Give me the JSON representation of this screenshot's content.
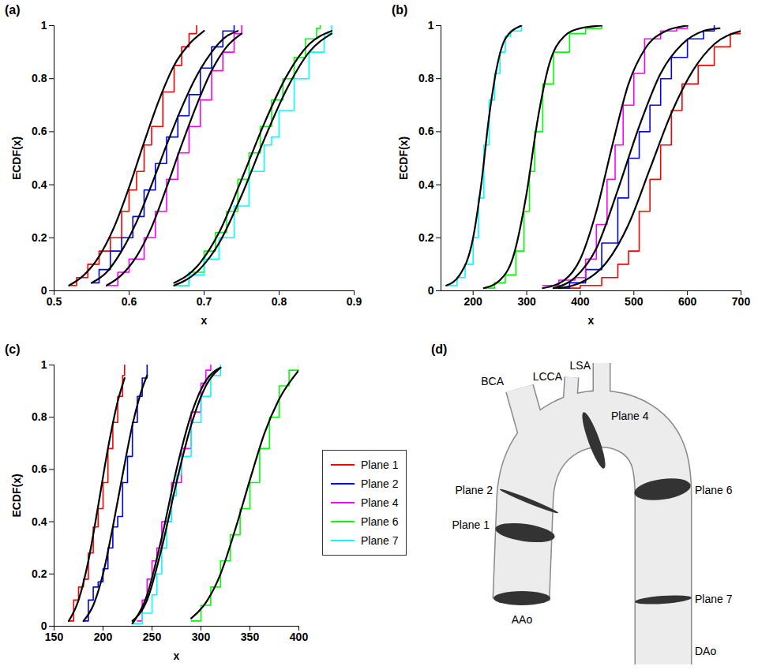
{
  "chart_data": [
    {
      "type": "line",
      "panel": "(a)",
      "xlabel": "x",
      "ylabel": "ECDF(x)",
      "xlim": [
        0.5,
        0.9
      ],
      "xticks": [
        0.5,
        0.6,
        0.7,
        0.8,
        0.9
      ],
      "ylim": [
        0,
        1
      ],
      "yticks": [
        0,
        0.2,
        0.4,
        0.6,
        0.8,
        1
      ],
      "series": [
        {
          "name": "Plane 1",
          "color": "#ff0000",
          "line_style": "step",
          "x": [
            0.52,
            0.53,
            0.545,
            0.56,
            0.575,
            0.59,
            0.6,
            0.61,
            0.62,
            0.63,
            0.645,
            0.66,
            0.67,
            0.68,
            0.69
          ],
          "values": [
            0.02,
            0.05,
            0.1,
            0.15,
            0.2,
            0.3,
            0.38,
            0.45,
            0.55,
            0.62,
            0.75,
            0.85,
            0.92,
            0.97,
            1
          ]
        },
        {
          "name": "Plane 2",
          "color": "#0000ff",
          "line_style": "step",
          "x": [
            0.55,
            0.56,
            0.575,
            0.59,
            0.605,
            0.62,
            0.635,
            0.65,
            0.665,
            0.68,
            0.695,
            0.71,
            0.725,
            0.74
          ],
          "values": [
            0.03,
            0.08,
            0.15,
            0.2,
            0.28,
            0.38,
            0.48,
            0.58,
            0.66,
            0.74,
            0.84,
            0.92,
            0.98,
            1
          ]
        },
        {
          "name": "Plane 4",
          "color": "#ff00ff",
          "line_style": "step",
          "x": [
            0.57,
            0.585,
            0.6,
            0.62,
            0.635,
            0.65,
            0.665,
            0.68,
            0.695,
            0.71,
            0.725,
            0.74,
            0.75
          ],
          "values": [
            0.02,
            0.07,
            0.12,
            0.2,
            0.3,
            0.42,
            0.52,
            0.62,
            0.72,
            0.83,
            0.9,
            0.97,
            1
          ]
        },
        {
          "name": "Plane 6",
          "color": "#00ff00",
          "line_style": "step",
          "x": [
            0.66,
            0.68,
            0.7,
            0.715,
            0.73,
            0.745,
            0.76,
            0.775,
            0.79,
            0.805,
            0.82,
            0.835,
            0.85,
            0.855
          ],
          "values": [
            0.02,
            0.07,
            0.15,
            0.22,
            0.3,
            0.42,
            0.52,
            0.62,
            0.72,
            0.8,
            0.88,
            0.95,
            0.99,
            1
          ]
        },
        {
          "name": "Plane 7",
          "color": "#00ffff",
          "line_style": "step",
          "x": [
            0.66,
            0.68,
            0.7,
            0.72,
            0.74,
            0.76,
            0.78,
            0.79,
            0.8,
            0.82,
            0.84,
            0.86,
            0.87
          ],
          "values": [
            0.02,
            0.06,
            0.12,
            0.2,
            0.32,
            0.45,
            0.55,
            0.58,
            0.68,
            0.8,
            0.9,
            0.97,
            1
          ]
        }
      ],
      "fits": [
        {
          "color": "#000000",
          "line_style": "solid",
          "x": [
            0.52,
            0.54,
            0.56,
            0.58,
            0.6,
            0.62,
            0.64,
            0.66,
            0.68,
            0.7
          ],
          "values": [
            0.02,
            0.06,
            0.13,
            0.24,
            0.39,
            0.56,
            0.72,
            0.85,
            0.93,
            0.98
          ]
        },
        {
          "color": "#000000",
          "line_style": "solid",
          "x": [
            0.55,
            0.57,
            0.59,
            0.61,
            0.63,
            0.65,
            0.67,
            0.69,
            0.71,
            0.73,
            0.745
          ],
          "values": [
            0.03,
            0.07,
            0.15,
            0.26,
            0.4,
            0.55,
            0.69,
            0.81,
            0.9,
            0.96,
            0.98
          ]
        },
        {
          "color": "#000000",
          "line_style": "solid",
          "x": [
            0.57,
            0.59,
            0.61,
            0.63,
            0.65,
            0.67,
            0.69,
            0.71,
            0.73,
            0.75
          ],
          "values": [
            0.02,
            0.06,
            0.13,
            0.24,
            0.39,
            0.55,
            0.7,
            0.83,
            0.92,
            0.97
          ]
        },
        {
          "color": "#000000",
          "line_style": "solid",
          "x": [
            0.66,
            0.69,
            0.72,
            0.75,
            0.78,
            0.81,
            0.84,
            0.87
          ],
          "values": [
            0.03,
            0.09,
            0.22,
            0.42,
            0.63,
            0.81,
            0.93,
            0.98
          ]
        },
        {
          "color": "#000000",
          "line_style": "solid",
          "x": [
            0.66,
            0.69,
            0.72,
            0.75,
            0.78,
            0.81,
            0.84,
            0.87
          ],
          "values": [
            0.02,
            0.07,
            0.18,
            0.36,
            0.57,
            0.76,
            0.9,
            0.97
          ]
        }
      ]
    },
    {
      "type": "line",
      "panel": "(b)",
      "xlabel": "x",
      "ylabel": "ECDF(x)",
      "xlim": [
        140,
        700
      ],
      "xticks": [
        200,
        300,
        400,
        500,
        600,
        700
      ],
      "ylim": [
        0,
        1
      ],
      "yticks": [
        0,
        0.2,
        0.4,
        0.6,
        0.8,
        1
      ],
      "series": [
        {
          "name": "Plane 1",
          "color": "#ff0000",
          "line_style": "step",
          "x": [
            360,
            400,
            440,
            470,
            490,
            510,
            530,
            550,
            570,
            590,
            620,
            650,
            680,
            700
          ],
          "values": [
            0.01,
            0.02,
            0.05,
            0.1,
            0.15,
            0.3,
            0.42,
            0.55,
            0.68,
            0.78,
            0.85,
            0.92,
            0.97,
            0.99
          ]
        },
        {
          "name": "Plane 2",
          "color": "#0000ff",
          "line_style": "step",
          "x": [
            350,
            380,
            410,
            440,
            470,
            490,
            510,
            530,
            550,
            570,
            600,
            630,
            650
          ],
          "values": [
            0.01,
            0.03,
            0.08,
            0.18,
            0.35,
            0.5,
            0.6,
            0.7,
            0.8,
            0.88,
            0.95,
            0.98,
            1
          ]
        },
        {
          "name": "Plane 4",
          "color": "#ff00ff",
          "line_style": "step",
          "x": [
            330,
            360,
            390,
            410,
            430,
            450,
            465,
            480,
            500,
            520,
            550,
            580,
            600
          ],
          "values": [
            0.02,
            0.04,
            0.05,
            0.12,
            0.25,
            0.42,
            0.55,
            0.7,
            0.82,
            0.95,
            0.98,
            0.99,
            1
          ]
        },
        {
          "name": "Plane 6",
          "color": "#00ff00",
          "line_style": "step",
          "x": [
            220,
            240,
            260,
            280,
            295,
            305,
            315,
            330,
            350,
            380,
            410,
            440
          ],
          "values": [
            0.01,
            0.03,
            0.06,
            0.15,
            0.3,
            0.45,
            0.6,
            0.78,
            0.9,
            0.97,
            0.99,
            1
          ]
        },
        {
          "name": "Plane 7",
          "color": "#00ffff",
          "line_style": "step",
          "x": [
            150,
            170,
            185,
            200,
            210,
            220,
            230,
            240,
            250,
            260,
            270,
            290
          ],
          "values": [
            0.02,
            0.05,
            0.1,
            0.2,
            0.35,
            0.55,
            0.72,
            0.82,
            0.9,
            0.96,
            0.98,
            1
          ]
        }
      ],
      "fits": [
        {
          "color": "#000000",
          "line_style": "solid",
          "x": [
            360,
            410,
            450,
            490,
            530,
            570,
            610,
            650,
            700
          ],
          "values": [
            0.01,
            0.04,
            0.11,
            0.25,
            0.46,
            0.67,
            0.83,
            0.93,
            0.98
          ]
        },
        {
          "color": "#000000",
          "line_style": "solid",
          "x": [
            350,
            390,
            430,
            470,
            510,
            550,
            590,
            630,
            660
          ],
          "values": [
            0.01,
            0.05,
            0.16,
            0.38,
            0.62,
            0.82,
            0.93,
            0.98,
            0.99
          ]
        },
        {
          "color": "#000000",
          "line_style": "solid",
          "x": [
            330,
            370,
            400,
            430,
            460,
            490,
            520,
            560,
            600
          ],
          "values": [
            0.01,
            0.04,
            0.12,
            0.3,
            0.55,
            0.78,
            0.91,
            0.98,
            1
          ]
        },
        {
          "color": "#000000",
          "line_style": "solid",
          "x": [
            220,
            250,
            275,
            300,
            320,
            340,
            370,
            400,
            440
          ],
          "values": [
            0.01,
            0.04,
            0.13,
            0.37,
            0.64,
            0.84,
            0.96,
            0.99,
            1
          ]
        },
        {
          "color": "#000000",
          "line_style": "solid",
          "x": [
            150,
            175,
            200,
            215,
            230,
            245,
            260,
            290
          ],
          "values": [
            0.02,
            0.06,
            0.2,
            0.4,
            0.66,
            0.85,
            0.95,
            1
          ]
        }
      ]
    },
    {
      "type": "line",
      "panel": "(c)",
      "xlabel": "x",
      "ylabel": "ECDF(x)",
      "legend": "right",
      "xlim": [
        150,
        400
      ],
      "xticks": [
        150,
        200,
        250,
        300,
        350,
        400
      ],
      "ylim": [
        0,
        1
      ],
      "yticks": [
        0,
        0.2,
        0.4,
        0.6,
        0.8,
        1
      ],
      "series": [
        {
          "name": "Plane 1",
          "color": "#ff0000",
          "line_style": "step",
          "x": [
            165,
            170,
            175,
            180,
            185,
            190,
            195,
            200,
            205,
            210,
            215,
            220,
            222
          ],
          "values": [
            0.02,
            0.1,
            0.15,
            0.18,
            0.28,
            0.38,
            0.45,
            0.55,
            0.68,
            0.78,
            0.88,
            0.96,
            1
          ]
        },
        {
          "name": "Plane 2",
          "color": "#0000ff",
          "line_style": "step",
          "x": [
            180,
            185,
            190,
            195,
            200,
            205,
            210,
            215,
            220,
            225,
            230,
            235,
            240,
            245
          ],
          "values": [
            0.02,
            0.1,
            0.15,
            0.17,
            0.22,
            0.3,
            0.38,
            0.42,
            0.55,
            0.65,
            0.78,
            0.88,
            0.95,
            1
          ]
        },
        {
          "name": "Plane 4",
          "color": "#ff00ff",
          "line_style": "step",
          "x": [
            235,
            240,
            245,
            250,
            255,
            260,
            270,
            280,
            290,
            300,
            305,
            310
          ],
          "values": [
            0.02,
            0.1,
            0.18,
            0.25,
            0.3,
            0.4,
            0.55,
            0.68,
            0.82,
            0.93,
            0.98,
            1
          ]
        },
        {
          "name": "Plane 6",
          "color": "#00ff00",
          "line_style": "step",
          "x": [
            290,
            300,
            310,
            320,
            330,
            340,
            350,
            360,
            370,
            380,
            390,
            400
          ],
          "values": [
            0.02,
            0.08,
            0.15,
            0.25,
            0.35,
            0.45,
            0.55,
            0.68,
            0.8,
            0.92,
            0.98,
            1
          ]
        },
        {
          "name": "Plane 7",
          "color": "#00ffff",
          "line_style": "step",
          "x": [
            230,
            240,
            250,
            255,
            260,
            265,
            270,
            275,
            280,
            290,
            300,
            310,
            320
          ],
          "values": [
            0.01,
            0.05,
            0.12,
            0.2,
            0.3,
            0.4,
            0.5,
            0.58,
            0.65,
            0.78,
            0.88,
            0.96,
            1
          ]
        }
      ],
      "fits": [
        {
          "color": "#000000",
          "line_style": "solid",
          "x": [
            165,
            175,
            185,
            195,
            205,
            215,
            222
          ],
          "values": [
            0.02,
            0.1,
            0.25,
            0.46,
            0.68,
            0.86,
            0.95
          ]
        },
        {
          "color": "#000000",
          "line_style": "solid",
          "x": [
            180,
            190,
            200,
            210,
            220,
            230,
            240,
            245
          ],
          "values": [
            0.02,
            0.08,
            0.2,
            0.38,
            0.58,
            0.77,
            0.91,
            0.96
          ]
        },
        {
          "color": "#000000",
          "line_style": "solid",
          "x": [
            230,
            245,
            260,
            275,
            290,
            305,
            320
          ],
          "values": [
            0.01,
            0.12,
            0.34,
            0.6,
            0.81,
            0.94,
            0.99
          ]
        },
        {
          "color": "#000000",
          "line_style": "solid",
          "x": [
            290,
            305,
            320,
            335,
            350,
            365,
            380,
            400
          ],
          "values": [
            0.03,
            0.09,
            0.2,
            0.37,
            0.56,
            0.74,
            0.87,
            0.98
          ]
        },
        {
          "color": "#000000",
          "line_style": "solid",
          "x": [
            230,
            245,
            260,
            275,
            290,
            305,
            320
          ],
          "values": [
            0.02,
            0.1,
            0.3,
            0.55,
            0.77,
            0.92,
            0.99
          ]
        }
      ]
    }
  ],
  "diagram": {
    "panel": "(d)",
    "labels": [
      "BCA",
      "LCCA",
      "LSA",
      "Plane 4",
      "Plane 6",
      "Plane 2",
      "Plane 1",
      "AAo",
      "Plane 7",
      "DAo"
    ]
  }
}
